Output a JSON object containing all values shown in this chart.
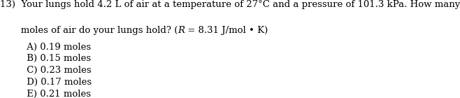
{
  "line1": "13)  Your lungs hold 4.2 L of air at a temperature of 27°C and a pressure of 101.3 kPa. How many",
  "line2_pre": "       moles of air do your lungs hold? (",
  "line2_italic": "R",
  "line2_post": " = 8.31 J/mol • K)",
  "choices": [
    "         A) 0.19 moles",
    "         B) 0.15 moles",
    "         C) 0.23 moles",
    "         D) 0.17 moles",
    "         E) 0.21 moles"
  ],
  "background_color": "#ffffff",
  "text_color": "#000000",
  "font_size": 9.5
}
